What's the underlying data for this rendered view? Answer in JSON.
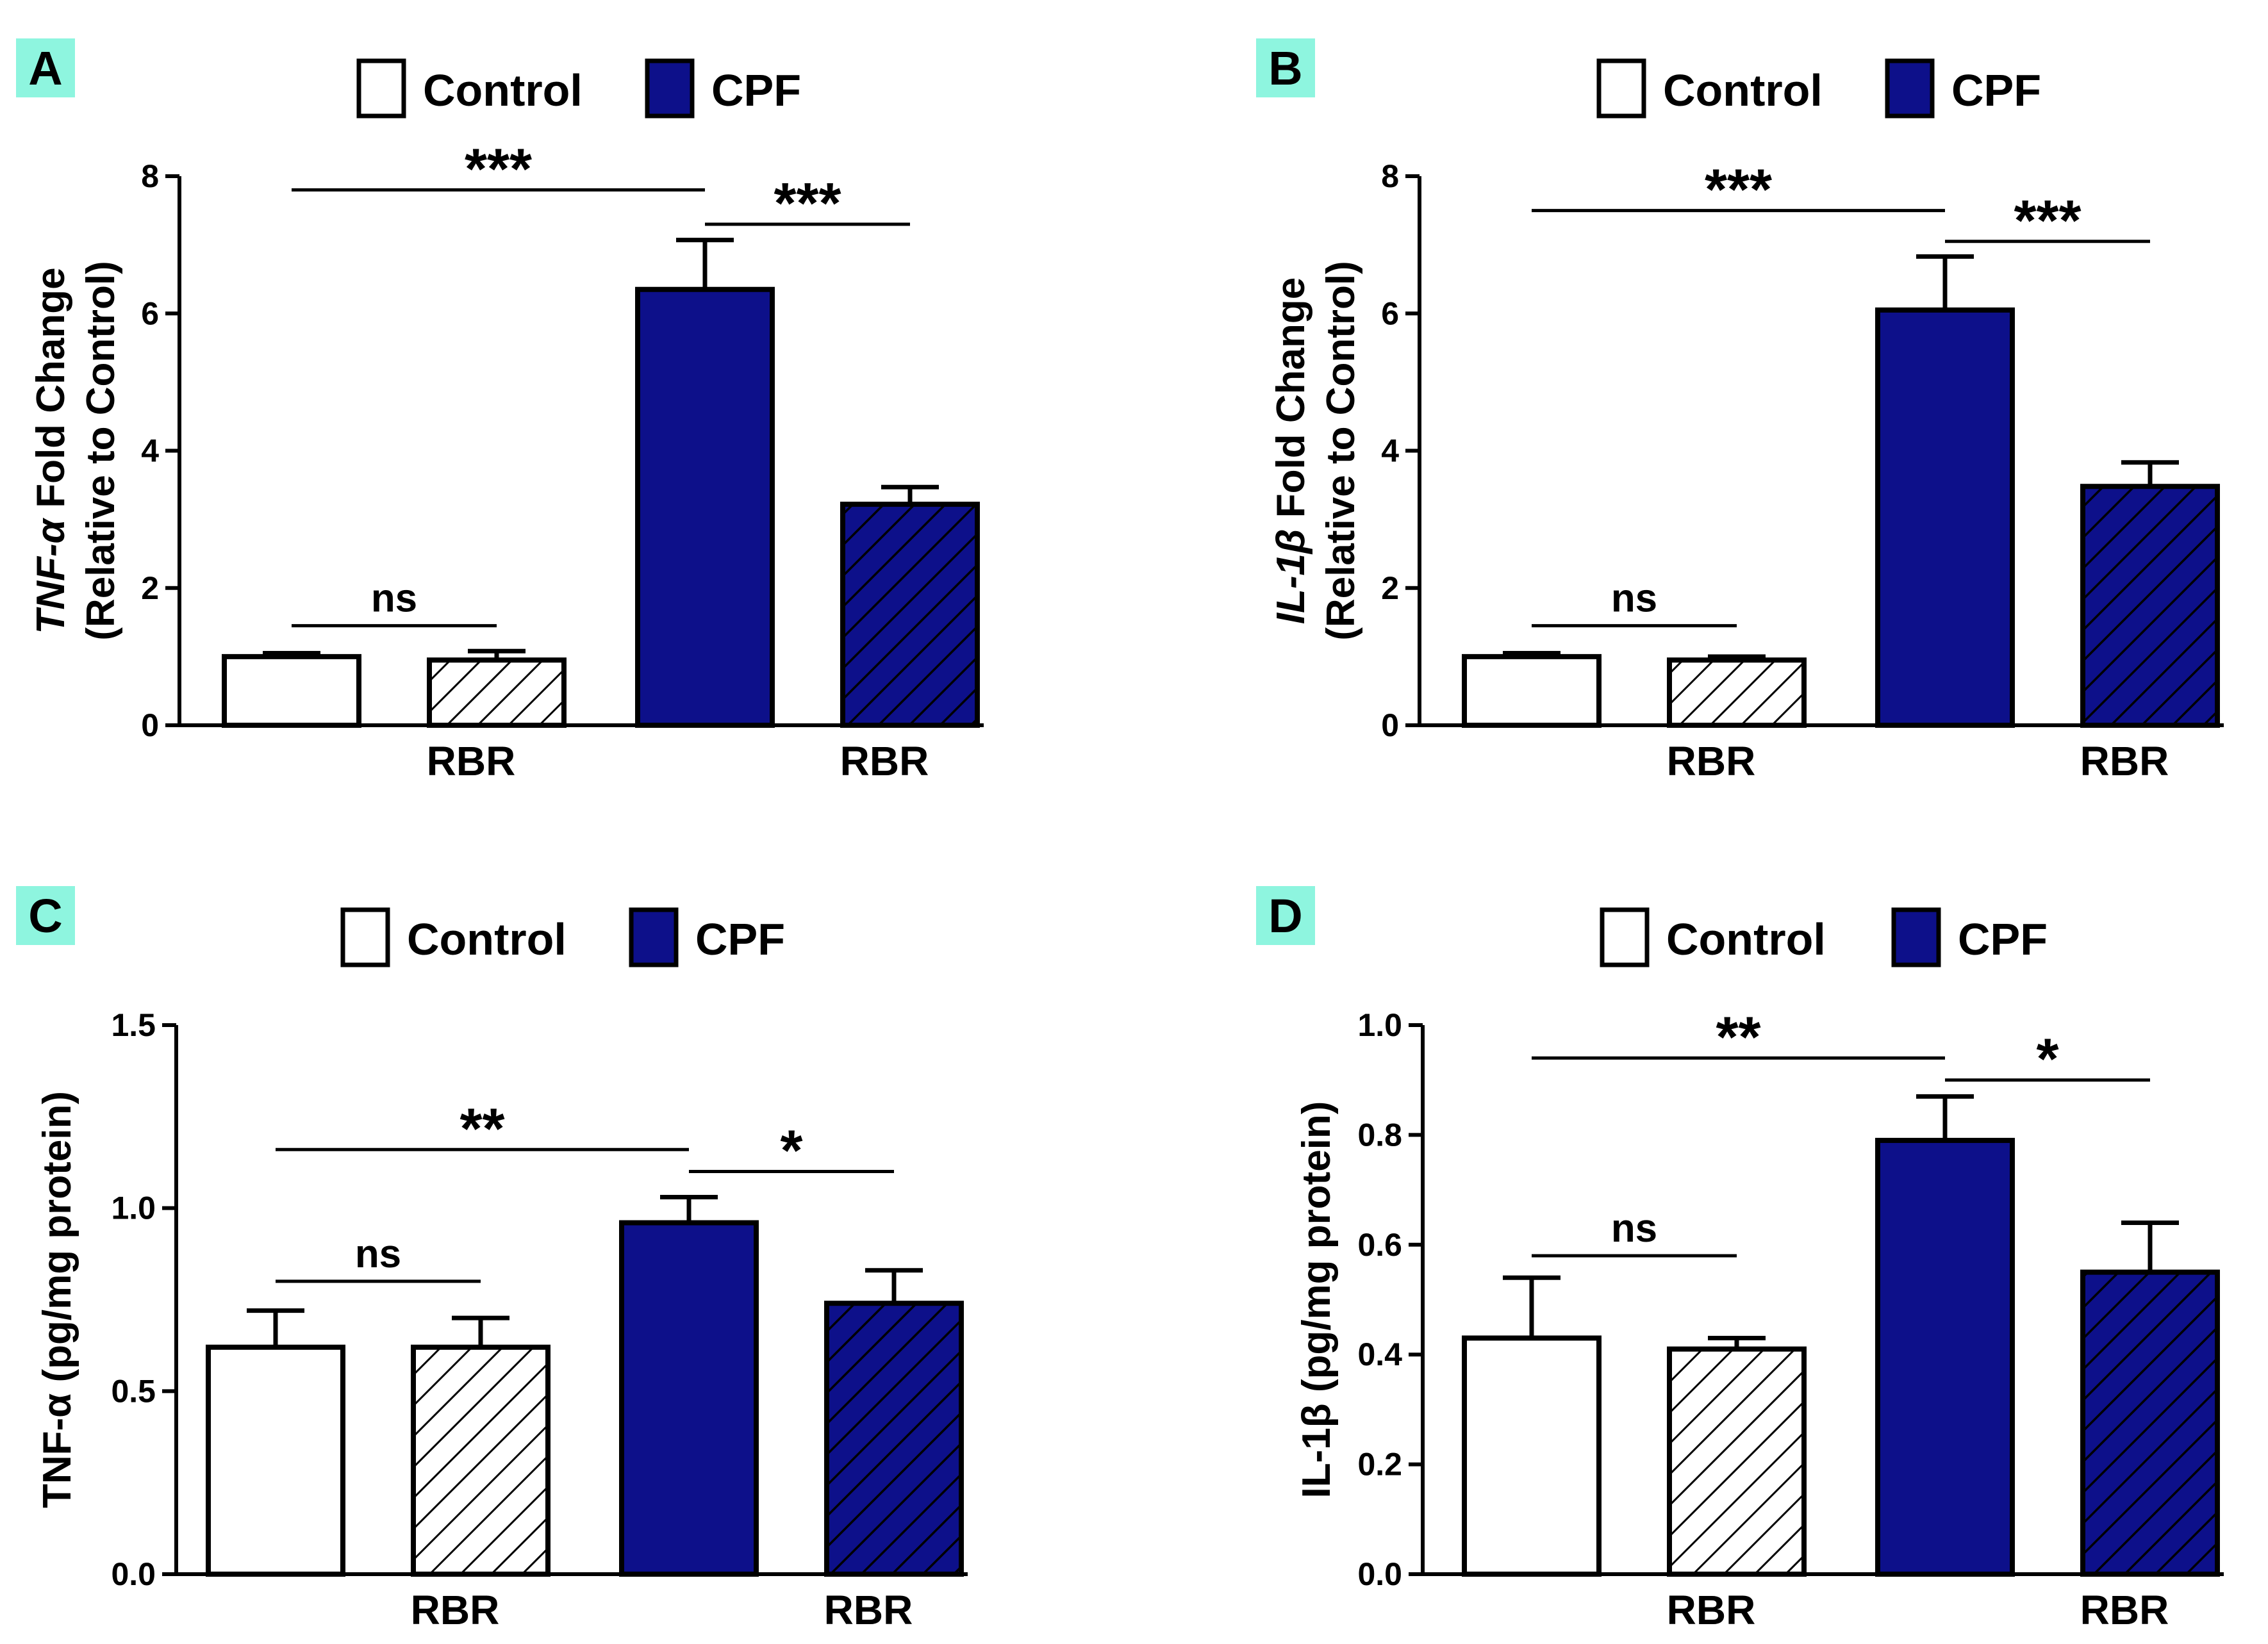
{
  "colors": {
    "cpf": "#0d108a",
    "control": "#ffffff",
    "stroke": "#000000",
    "label_bg": "#8ef5df"
  },
  "legend": {
    "control": "Control",
    "cpf": "CPF"
  },
  "chart_data": [
    {
      "panel": "A",
      "type": "bar",
      "ylabel_main": "Fold Change",
      "ylabel_prefix": "TNF-α",
      "ylabel_sub": "(Relative to Control)",
      "ylim": [
        0,
        8
      ],
      "yticks": [
        "0",
        "2",
        "4",
        "6",
        "8"
      ],
      "categories": [
        "Control",
        "Control + RBR",
        "CPF",
        "CPF + RBR"
      ],
      "values": [
        1.0,
        0.95,
        6.35,
        3.22
      ],
      "errors": [
        0.05,
        0.13,
        0.72,
        0.25
      ],
      "group_labels": [
        "RBR",
        "RBR"
      ],
      "significance": [
        {
          "from": 0,
          "to": 1,
          "label": "ns",
          "y": 1.45
        },
        {
          "from": 0,
          "to": 2,
          "label": "***",
          "y": 7.8
        },
        {
          "from": 2,
          "to": 3,
          "label": "***",
          "y": 7.3
        }
      ]
    },
    {
      "panel": "B",
      "type": "bar",
      "ylabel_main": "Fold Change",
      "ylabel_prefix": "IL-1β",
      "ylabel_sub": "(Relative to Control)",
      "ylim": [
        0,
        8
      ],
      "yticks": [
        "0",
        "2",
        "4",
        "6",
        "8"
      ],
      "categories": [
        "Control",
        "Control + RBR",
        "CPF",
        "CPF + RBR"
      ],
      "values": [
        1.0,
        0.95,
        6.05,
        3.48
      ],
      "errors": [
        0.05,
        0.05,
        0.78,
        0.35
      ],
      "group_labels": [
        "RBR",
        "RBR"
      ],
      "significance": [
        {
          "from": 0,
          "to": 1,
          "label": "ns",
          "y": 1.45
        },
        {
          "from": 0,
          "to": 2,
          "label": "***",
          "y": 7.5
        },
        {
          "from": 2,
          "to": 3,
          "label": "***",
          "y": 7.05
        }
      ]
    },
    {
      "panel": "C",
      "type": "bar",
      "ylabel_main": "TNF-α",
      "ylabel_sub": "(pg/mg protein)",
      "ylim": [
        0,
        1.5
      ],
      "yticks": [
        "0.0",
        "0.5",
        "1.0",
        "1.5"
      ],
      "categories": [
        "Control",
        "Control + RBR",
        "CPF",
        "CPF + RBR"
      ],
      "values": [
        0.62,
        0.62,
        0.96,
        0.74
      ],
      "errors": [
        0.1,
        0.08,
        0.07,
        0.09
      ],
      "group_labels": [
        "RBR",
        "RBR"
      ],
      "significance": [
        {
          "from": 0,
          "to": 1,
          "label": "ns",
          "y": 0.8
        },
        {
          "from": 0,
          "to": 2,
          "label": "**",
          "y": 1.16
        },
        {
          "from": 2,
          "to": 3,
          "label": "*",
          "y": 1.1
        }
      ]
    },
    {
      "panel": "D",
      "type": "bar",
      "ylabel_main": "IL-1β",
      "ylabel_sub": "(pg/mg protein)",
      "ylim": [
        0,
        1.0
      ],
      "yticks": [
        "0.0",
        "0.2",
        "0.4",
        "0.6",
        "0.8",
        "1.0"
      ],
      "categories": [
        "Control",
        "Control + RBR",
        "CPF",
        "CPF + RBR"
      ],
      "values": [
        0.43,
        0.41,
        0.79,
        0.55
      ],
      "errors": [
        0.11,
        0.02,
        0.08,
        0.09
      ],
      "group_labels": [
        "RBR",
        "RBR"
      ],
      "significance": [
        {
          "from": 0,
          "to": 1,
          "label": "ns",
          "y": 0.58
        },
        {
          "from": 0,
          "to": 2,
          "label": "**",
          "y": 0.94
        },
        {
          "from": 2,
          "to": 3,
          "label": "*",
          "y": 0.9
        }
      ]
    }
  ]
}
